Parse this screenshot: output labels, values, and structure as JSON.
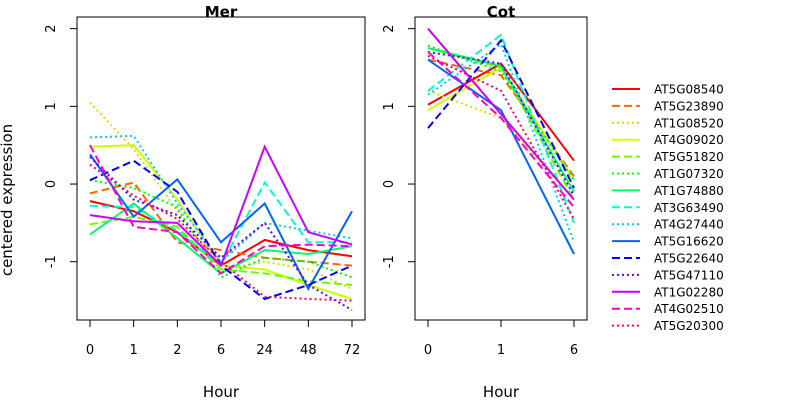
{
  "figure": {
    "ylabel": "centered expression",
    "series_names": [
      "AT5G08540",
      "AT5G23890",
      "AT1G08520",
      "AT4G09020",
      "AT5G51820",
      "AT1G07320",
      "AT1G74880",
      "AT3G63490",
      "AT4G27440",
      "AT5G16620",
      "AT5G22640",
      "AT5G47110",
      "AT1G02280",
      "AT4G02510",
      "AT5G20300"
    ],
    "series_colors": [
      "#FF0000",
      "#FF6600",
      "#FFCC00",
      "#CCFF00",
      "#66FF00",
      "#00FF00",
      "#00FF66",
      "#00FFCC",
      "#00CCFF",
      "#0066FF",
      "#0000FF",
      "#6600FF",
      "#CC00FF",
      "#FF00CC",
      "#FF0066"
    ],
    "series_dash": [
      "solid",
      "dashed",
      "dotted",
      "solid",
      "dashed",
      "dotted",
      "solid",
      "dashed",
      "dotted",
      "solid",
      "dashed",
      "dotted",
      "solid",
      "dashed",
      "dotted"
    ]
  },
  "chart_data": [
    {
      "type": "line",
      "title": "Mer",
      "xlabel": "Hour",
      "ylabel": "centered expression",
      "x": [
        "0",
        "1",
        "2",
        "6",
        "24",
        "48",
        "72"
      ],
      "ylim": [
        -1.75,
        2.15
      ],
      "yticks": [
        -1,
        0,
        1,
        2
      ],
      "series": [
        {
          "name": "AT5G08540",
          "values": [
            -0.22,
            -0.35,
            -0.62,
            -1.05,
            -0.72,
            -0.85,
            -0.93
          ]
        },
        {
          "name": "AT5G23890",
          "values": [
            -0.12,
            0.02,
            -0.75,
            -0.85,
            -0.95,
            -1.0,
            -1.05
          ]
        },
        {
          "name": "AT1G08520",
          "values": [
            1.05,
            0.45,
            -0.35,
            -1.1,
            -1.0,
            -1.1,
            -1.35
          ]
        },
        {
          "name": "AT4G09020",
          "values": [
            0.48,
            0.5,
            -0.2,
            -1.05,
            -1.1,
            -1.3,
            -1.48
          ]
        },
        {
          "name": "AT5G51820",
          "values": [
            -0.52,
            -0.42,
            -0.55,
            -1.1,
            -1.15,
            -1.25,
            -1.3
          ]
        },
        {
          "name": "AT1G07320",
          "values": [
            0.05,
            -0.05,
            -0.3,
            -1.2,
            -0.95,
            -1.0,
            -1.2
          ]
        },
        {
          "name": "AT1G74880",
          "values": [
            -0.65,
            -0.25,
            -0.7,
            -1.15,
            -0.85,
            -0.9,
            -0.8
          ]
        },
        {
          "name": "AT3G63490",
          "values": [
            -0.28,
            -0.3,
            -0.6,
            -1.05,
            0.02,
            -0.75,
            -0.75
          ]
        },
        {
          "name": "AT4G27440",
          "values": [
            0.6,
            0.62,
            -0.25,
            -1.0,
            -0.5,
            -0.6,
            -0.7
          ]
        },
        {
          "name": "AT5G16620",
          "values": [
            0.38,
            -0.42,
            0.06,
            -0.75,
            -0.25,
            -1.35,
            -0.35
          ]
        },
        {
          "name": "AT5G22640",
          "values": [
            0.05,
            0.3,
            -0.1,
            -1.05,
            -1.48,
            -1.3,
            -1.05
          ]
        },
        {
          "name": "AT5G47110",
          "values": [
            0.35,
            -0.2,
            -0.4,
            -0.95,
            -0.5,
            -1.3,
            -1.62
          ]
        },
        {
          "name": "AT1G02280",
          "values": [
            -0.4,
            -0.48,
            -0.5,
            -1.05,
            0.48,
            -0.62,
            -0.78
          ]
        },
        {
          "name": "AT4G02510",
          "values": [
            0.5,
            -0.55,
            -0.62,
            -1.15,
            -0.8,
            -0.78,
            -0.8
          ]
        },
        {
          "name": "AT5G20300",
          "values": [
            0.25,
            -0.15,
            -0.45,
            -1.0,
            -1.45,
            -1.48,
            -1.5
          ]
        }
      ]
    },
    {
      "type": "line",
      "title": "Cot",
      "xlabel": "Hour",
      "x": [
        "0",
        "1",
        "6"
      ],
      "ylim": [
        -1.75,
        2.15
      ],
      "yticks": [
        -1,
        0,
        1,
        2
      ],
      "series": [
        {
          "name": "AT5G08540",
          "values": [
            1.02,
            1.55,
            0.3
          ]
        },
        {
          "name": "AT5G23890",
          "values": [
            1.6,
            1.4,
            0.1
          ]
        },
        {
          "name": "AT1G08520",
          "values": [
            1.2,
            0.85,
            -0.2
          ]
        },
        {
          "name": "AT4G09020",
          "values": [
            0.95,
            1.5,
            0.05
          ]
        },
        {
          "name": "AT5G51820",
          "values": [
            1.75,
            1.5,
            -0.2
          ]
        },
        {
          "name": "AT1G07320",
          "values": [
            1.78,
            1.45,
            0.05
          ]
        },
        {
          "name": "AT1G74880",
          "values": [
            1.75,
            1.52,
            -0.1
          ]
        },
        {
          "name": "AT3G63490",
          "values": [
            1.2,
            1.92,
            -0.5
          ]
        },
        {
          "name": "AT4G27440",
          "values": [
            1.15,
            1.8,
            -0.75
          ]
        },
        {
          "name": "AT5G16620",
          "values": [
            1.6,
            0.95,
            -0.9
          ]
        },
        {
          "name": "AT5G22640",
          "values": [
            0.72,
            1.85,
            -0.05
          ]
        },
        {
          "name": "AT5G47110",
          "values": [
            1.7,
            1.55,
            -0.15
          ]
        },
        {
          "name": "AT1G02280",
          "values": [
            2.0,
            0.9,
            -0.2
          ]
        },
        {
          "name": "AT4G02510",
          "values": [
            1.7,
            0.85,
            -0.3
          ]
        },
        {
          "name": "AT5G20300",
          "values": [
            1.65,
            1.2,
            -0.45
          ]
        }
      ]
    }
  ]
}
